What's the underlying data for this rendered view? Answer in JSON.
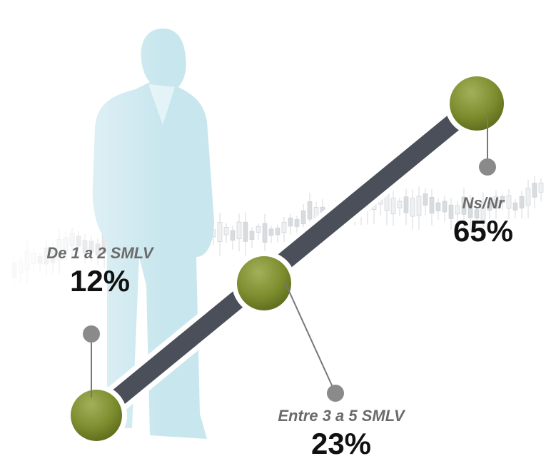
{
  "chart_data": {
    "type": "infographic",
    "categories": [
      "De 1 a 2 SMLV",
      "Entre 3 a 5 SMLV",
      "Ns/Nr"
    ],
    "values": [
      12,
      23,
      65
    ],
    "value_labels": [
      "12%",
      "23%",
      "65%"
    ],
    "color": "#7a8a2a"
  }
}
